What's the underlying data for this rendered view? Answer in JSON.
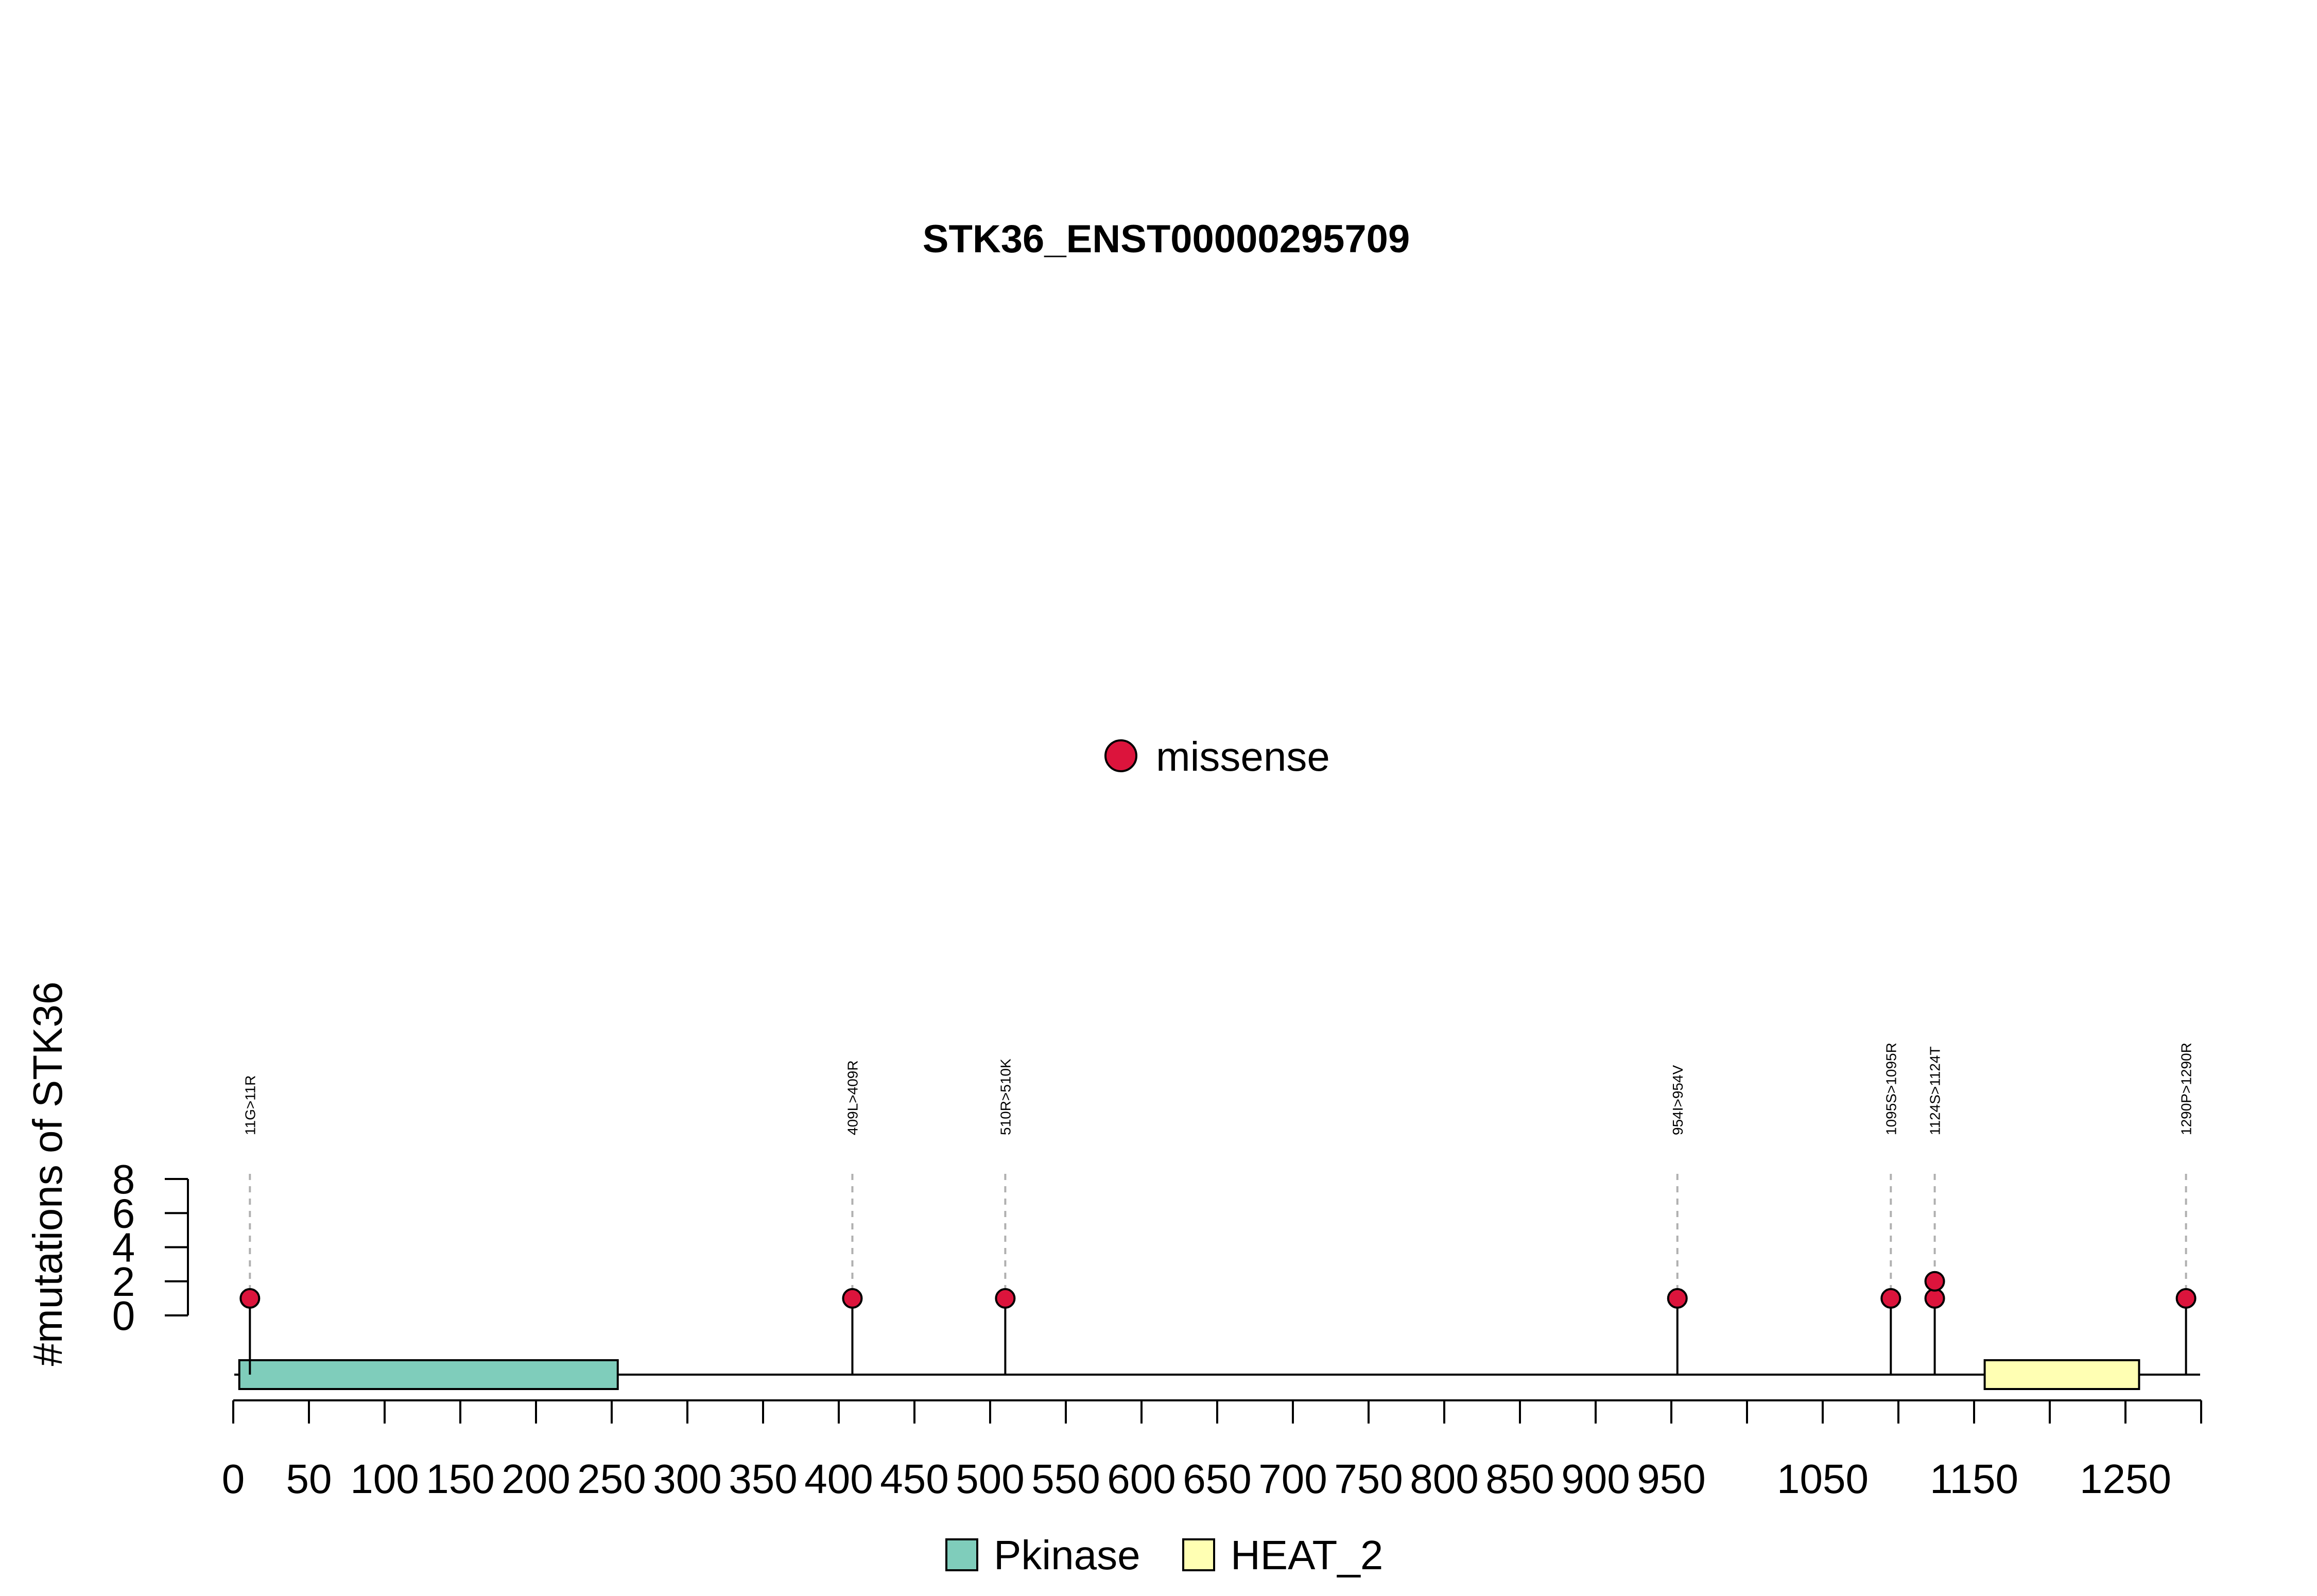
{
  "chart_data": {
    "type": "lollipop",
    "title": "STK36_ENST00000295709",
    "ylabel": "#mutations of STK36",
    "ylim": [
      0,
      8
    ],
    "y_ticks": [
      0,
      2,
      4,
      6,
      8
    ],
    "xlim": [
      0,
      1300
    ],
    "x_ticks": [
      0,
      50,
      100,
      150,
      200,
      250,
      300,
      350,
      400,
      450,
      500,
      550,
      600,
      650,
      700,
      750,
      800,
      850,
      900,
      950,
      1000,
      1050,
      1100,
      1150,
      1200,
      1250,
      1300
    ],
    "x_tick_labels": [
      0,
      50,
      100,
      150,
      200,
      250,
      300,
      350,
      400,
      450,
      500,
      550,
      600,
      650,
      700,
      750,
      800,
      850,
      900,
      950,
      1050,
      1150,
      1250
    ],
    "legend_top": {
      "label": "missense",
      "color": "#DC143C"
    },
    "domains": [
      {
        "name": "Pkinase",
        "start": 4,
        "end": 254,
        "color": "#7FCDBB"
      },
      {
        "name": "HEAT_2",
        "start": 1157,
        "end": 1259,
        "color": "#FFFFB3"
      }
    ],
    "mutations": [
      {
        "label": "11G>11R",
        "position": 11,
        "count": 1,
        "type": "missense"
      },
      {
        "label": "409L>409R",
        "position": 409,
        "count": 1,
        "type": "missense"
      },
      {
        "label": "510R>510K",
        "position": 510,
        "count": 1,
        "type": "missense"
      },
      {
        "label": "954I>954V",
        "position": 954,
        "count": 1,
        "type": "missense"
      },
      {
        "label": "1095S>1095R",
        "position": 1095,
        "count": 1,
        "type": "missense"
      },
      {
        "label": "1124S>1124T",
        "position": 1124,
        "count": 2,
        "type": "missense"
      },
      {
        "label": "1290P>1290R",
        "position": 1290,
        "count": 1,
        "type": "missense"
      }
    ]
  }
}
